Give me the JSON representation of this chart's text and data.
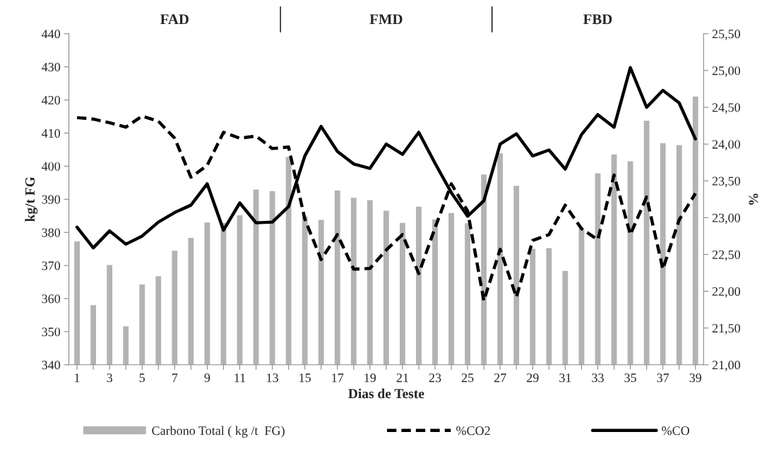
{
  "chart_data": {
    "type": "bar",
    "xlabel": "Dias de Teste",
    "ylabel": "kg/t FG",
    "y2label": "%",
    "annotations": [
      "FAD",
      "FMD",
      "FBD"
    ],
    "categories": [
      "1",
      null,
      "3",
      null,
      "5",
      null,
      "7",
      null,
      "9",
      null,
      "11",
      null,
      "13",
      null,
      "15",
      null,
      "17",
      null,
      "19",
      null,
      "21",
      null,
      "23",
      null,
      "25",
      null,
      "27",
      null,
      "29",
      null,
      "31",
      null,
      "33",
      null,
      "35",
      null,
      "37",
      null,
      "39"
    ],
    "series": [
      {
        "name": "Carbono Total ( kg /t  FG)",
        "color": "#b3b3b3",
        "values": [
          377.4,
          358.2,
          370.3,
          351.8,
          364.4,
          366.9,
          374.6,
          378.5,
          383.1,
          383,
          385.3,
          393.1,
          392.6,
          402.9,
          385,
          383.9,
          392.8,
          390.6,
          389.9,
          386.7,
          383,
          387.9,
          384.1,
          386,
          382.9,
          397.6,
          404,
          394.2,
          375.2,
          375.4,
          368.5,
          381.4,
          398,
          403.7,
          401.6,
          413.9,
          407.1,
          406.5,
          421.2
        ]
      },
      {
        "name": "%CO2",
        "type": "line",
        "axis": "y2",
        "color": "#000000",
        "line_style": "dashed",
        "values": [
          24.36,
          24.34,
          24.29,
          24.23,
          24.38,
          24.31,
          24.08,
          23.55,
          23.71,
          24.16,
          24.08,
          24.11,
          23.94,
          23.96,
          22.98,
          22.43,
          22.77,
          22.3,
          22.31,
          22.56,
          22.77,
          22.24,
          22.86,
          23.46,
          23.09,
          21.87,
          22.57,
          21.92,
          22.69,
          22.77,
          23.17,
          22.85,
          22.7,
          23.58,
          22.77,
          23.28,
          22.3,
          22.97,
          23.33
        ]
      },
      {
        "name": "%CO",
        "type": "line",
        "axis": "y2",
        "color": "#000000",
        "line_style": "solid",
        "values": [
          22.87,
          22.59,
          22.82,
          22.64,
          22.75,
          22.94,
          23.07,
          23.17,
          23.46,
          22.83,
          23.2,
          22.93,
          22.94,
          23.15,
          23.84,
          24.24,
          23.9,
          23.73,
          23.67,
          24.0,
          23.86,
          24.16,
          23.74,
          23.34,
          23.02,
          23.23,
          24.0,
          24.14,
          23.84,
          23.92,
          23.66,
          24.13,
          24.4,
          24.23,
          25.04,
          24.5,
          24.73,
          24.56,
          24.07
        ]
      }
    ],
    "ylim": [
      340,
      440
    ],
    "yticks": [
      340,
      350,
      360,
      370,
      380,
      390,
      400,
      410,
      420,
      430,
      440
    ],
    "y2lim": [
      21,
      25.5
    ],
    "y2ticks": [
      {
        "value": 21,
        "label": "21,00"
      },
      {
        "value": 21.5,
        "label": "21,50"
      },
      {
        "value": 22,
        "label": "22,00"
      },
      {
        "value": 22.5,
        "label": "22,50"
      },
      {
        "value": 23,
        "label": "23,00"
      },
      {
        "value": 23.5,
        "label": "23,50"
      },
      {
        "value": 24,
        "label": "24,00"
      },
      {
        "value": 24.5,
        "label": "24,50"
      },
      {
        "value": 25,
        "label": "25,00"
      },
      {
        "value": 25.5,
        "label": "25,50"
      }
    ],
    "grid": false,
    "legend": "bottom"
  }
}
